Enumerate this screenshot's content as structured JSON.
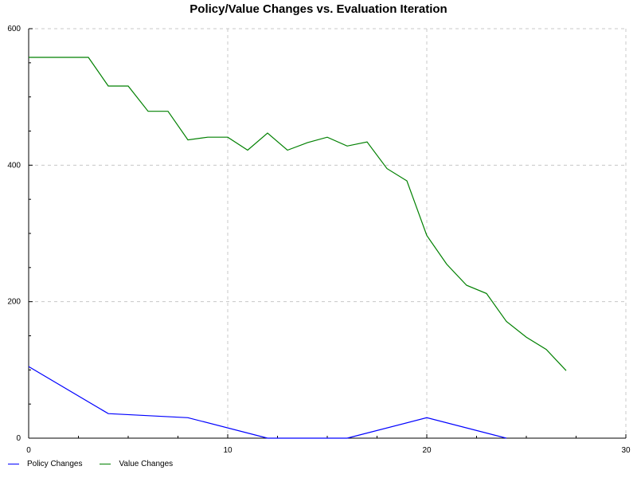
{
  "chart_data": {
    "type": "line",
    "title": "Policy/Value Changes vs. Evaluation Iteration",
    "xlabel": "",
    "ylabel": "",
    "xlim": [
      0,
      30
    ],
    "ylim": [
      0,
      600
    ],
    "x_ticks": [
      0,
      10,
      20,
      30
    ],
    "y_ticks": [
      0,
      200,
      400,
      600
    ],
    "grid": true,
    "legend_position": "bottom-left",
    "series": [
      {
        "name": "Policy Changes",
        "color": "#0000ff",
        "x": [
          0,
          4,
          8,
          12,
          16,
          20,
          24
        ],
        "values": [
          105,
          36,
          30,
          0,
          0,
          30,
          0
        ]
      },
      {
        "name": "Value Changes",
        "color": "#008000",
        "x": [
          0,
          1,
          2,
          3,
          4,
          5,
          6,
          7,
          8,
          9,
          10,
          11,
          12,
          13,
          14,
          15,
          16,
          17,
          18,
          19,
          20,
          21,
          22,
          23,
          24,
          25,
          26,
          27
        ],
        "values": [
          558,
          558,
          558,
          558,
          516,
          516,
          479,
          479,
          437,
          441,
          441,
          422,
          447,
          422,
          433,
          441,
          428,
          434,
          395,
          377,
          297,
          255,
          224,
          212,
          171,
          148,
          130,
          99
        ]
      }
    ]
  }
}
